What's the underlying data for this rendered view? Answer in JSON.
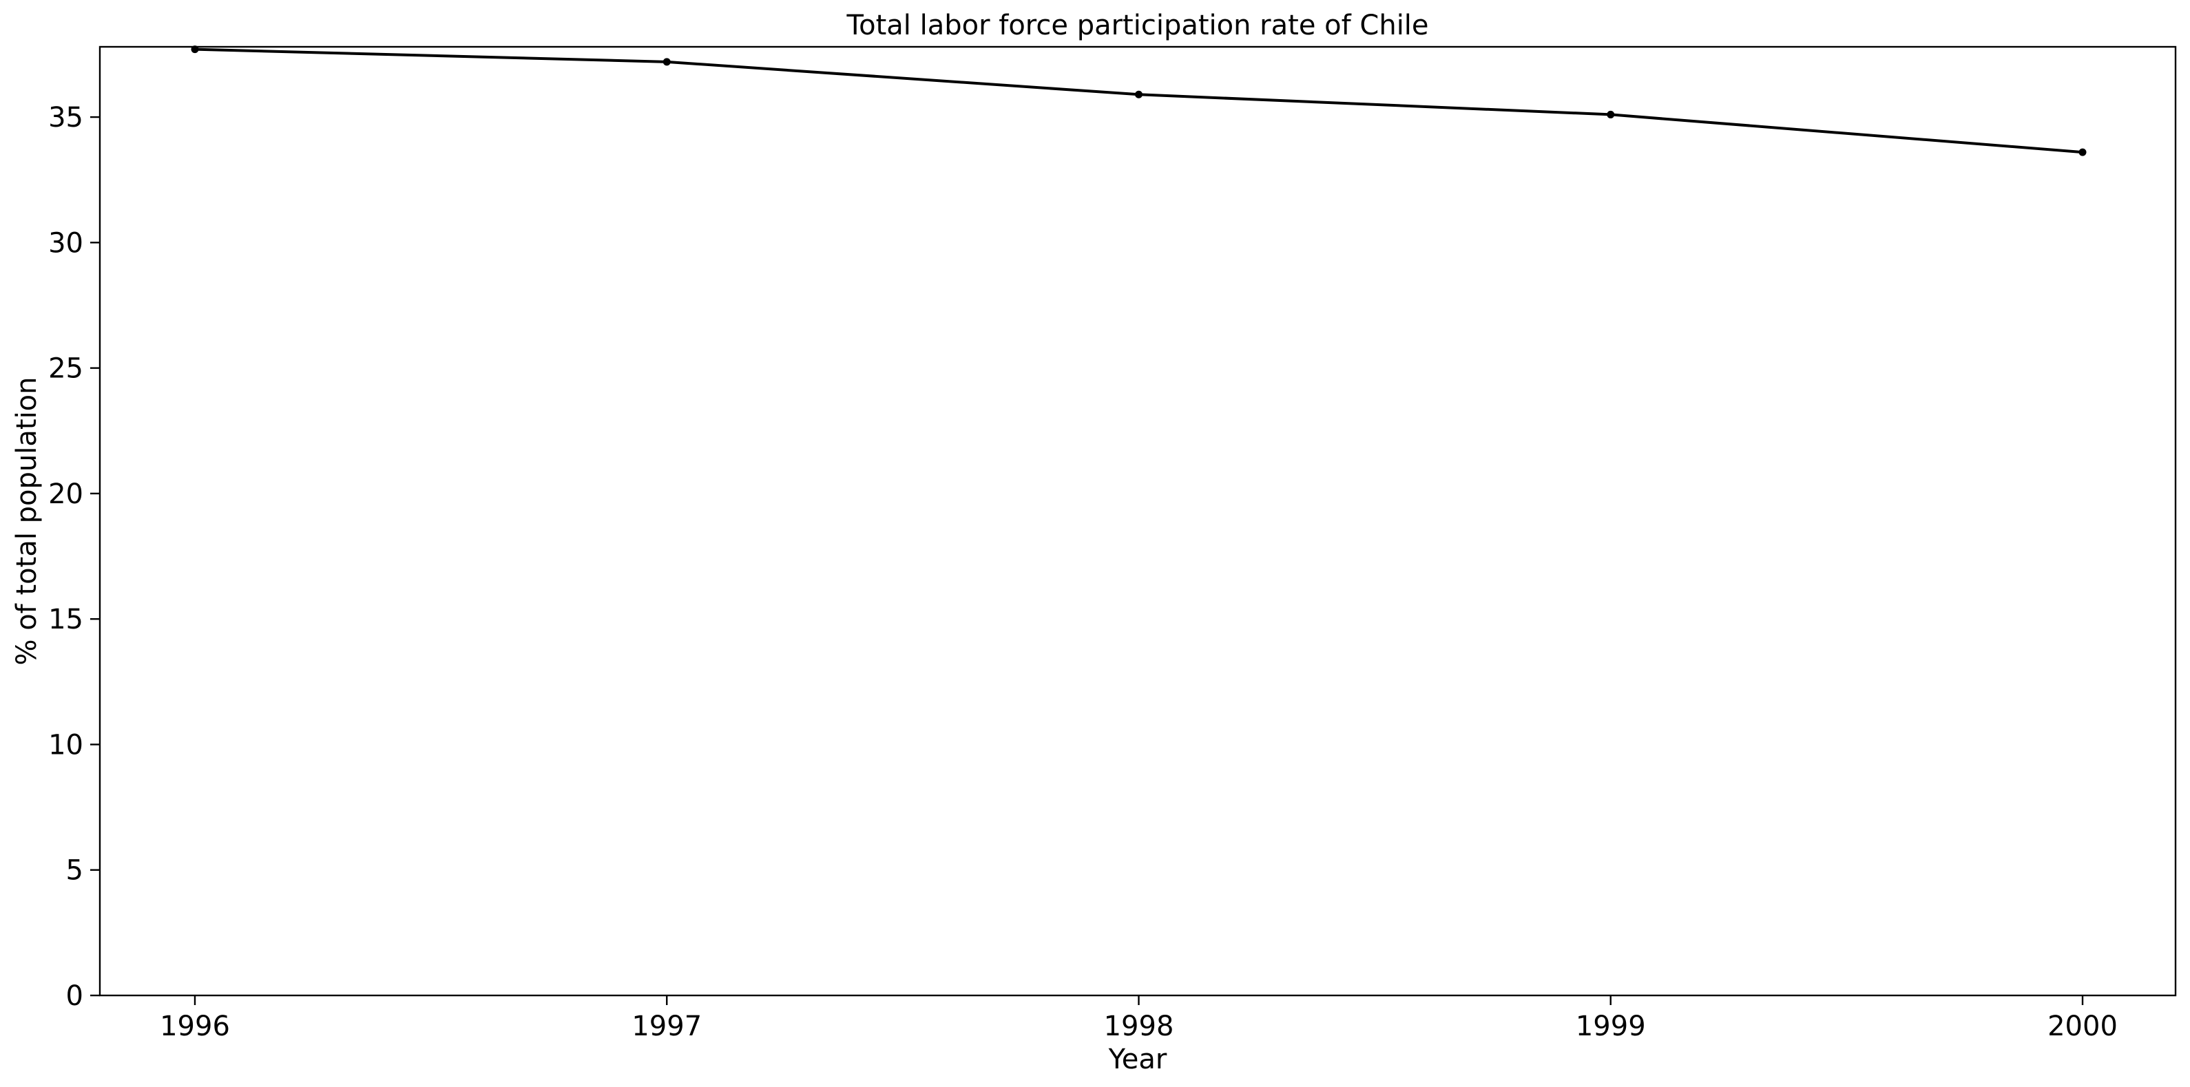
{
  "chart_data": {
    "type": "line",
    "title": "Total labor force participation rate of Chile",
    "xlabel": "Year",
    "ylabel": "% of total population",
    "x": [
      "1996",
      "1997",
      "1998",
      "1999",
      "2000"
    ],
    "series": [
      {
        "values": [
          37.7,
          37.2,
          35.9,
          35.1,
          33.6
        ],
        "color": "#000000",
        "marker": "circle"
      }
    ],
    "xlim": [
      "1996",
      "2000"
    ],
    "ylim": [
      0,
      37.8
    ],
    "yticks": [
      0,
      5,
      10,
      15,
      20,
      25,
      30,
      35
    ],
    "xticks": [
      "1996",
      "1997",
      "1998",
      "1999",
      "2000"
    ],
    "grid": false,
    "legend": "none"
  }
}
